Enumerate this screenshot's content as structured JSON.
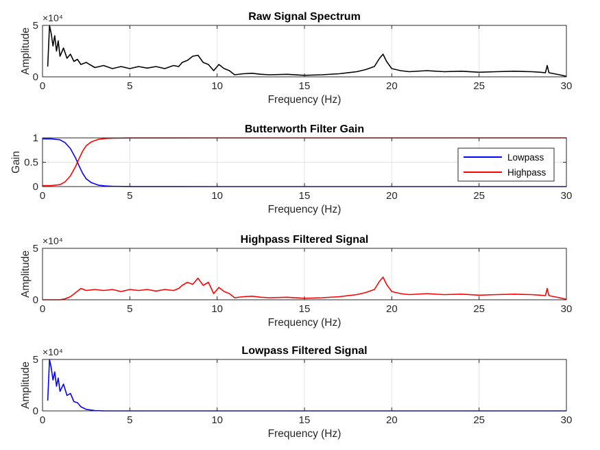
{
  "chart_data": [
    {
      "type": "line",
      "title": "Raw Signal Spectrum",
      "xlabel": "Frequency (Hz)",
      "ylabel": "Amplitude",
      "xlim": [
        0,
        30
      ],
      "ylim": [
        0,
        50000
      ],
      "xticks": [
        "0",
        "5",
        "10",
        "15",
        "20",
        "25",
        "30"
      ],
      "yticks": [
        "0",
        "5"
      ],
      "y_exponent_label": "×10⁴",
      "grid": true,
      "series": [
        {
          "color": "#000000",
          "x": [
            0.3,
            0.4,
            0.5,
            0.6,
            0.7,
            0.8,
            0.9,
            1.0,
            1.2,
            1.4,
            1.6,
            1.8,
            2.0,
            2.2,
            2.5,
            3.0,
            3.5,
            4.0,
            4.5,
            5.0,
            5.5,
            6.0,
            6.5,
            7.0,
            7.5,
            7.8,
            8.0,
            8.3,
            8.6,
            8.9,
            9.2,
            9.5,
            9.8,
            10.1,
            10.4,
            10.7,
            11.0,
            11.5,
            12.0,
            12.5,
            13.0,
            14.0,
            15.0,
            16.0,
            17.0,
            18.0,
            18.5,
            19.0,
            19.3,
            19.5,
            19.7,
            20.0,
            20.5,
            21.0,
            22.0,
            23.0,
            24.0,
            25.0,
            26.0,
            27.0,
            28.0,
            28.5,
            28.8,
            28.9,
            29.0,
            29.3,
            29.6,
            30.0
          ],
          "y": [
            10000,
            50000,
            42000,
            30000,
            40000,
            25000,
            35000,
            20000,
            28000,
            18000,
            22000,
            15000,
            17000,
            12000,
            14000,
            9000,
            11000,
            8000,
            10000,
            8000,
            10000,
            8500,
            10000,
            8000,
            11000,
            10000,
            14000,
            16000,
            20000,
            21000,
            14000,
            12000,
            6000,
            12000,
            8000,
            6000,
            2000,
            3000,
            3500,
            2500,
            2000,
            2500,
            1500,
            2000,
            3000,
            5000,
            7000,
            10000,
            18000,
            22000,
            15000,
            8000,
            6000,
            5000,
            6000,
            5000,
            5500,
            4500,
            5000,
            5500,
            5000,
            4500,
            4000,
            11000,
            4000,
            3000,
            2000,
            500
          ]
        }
      ]
    },
    {
      "type": "line",
      "title": "Butterworth Filter Gain",
      "xlabel": "Frequency (Hz)",
      "ylabel": "Gain",
      "xlim": [
        0,
        30
      ],
      "ylim": [
        0,
        1
      ],
      "xticks": [
        "0",
        "5",
        "10",
        "15",
        "20",
        "25",
        "30"
      ],
      "yticks": [
        "0",
        "0.5",
        "1"
      ],
      "grid": true,
      "legend": "right",
      "series": [
        {
          "name": "Lowpass",
          "color": "#0000ff",
          "x": [
            0,
            0.5,
            1.0,
            1.3,
            1.6,
            1.9,
            2.0,
            2.1,
            2.3,
            2.5,
            2.8,
            3.2,
            3.6,
            4.0,
            5.0,
            10.0,
            20.0,
            30.0
          ],
          "y": [
            0.98,
            0.98,
            0.96,
            0.9,
            0.78,
            0.58,
            0.5,
            0.42,
            0.27,
            0.16,
            0.08,
            0.03,
            0.012,
            0.005,
            0.001,
            0,
            0,
            0
          ]
        },
        {
          "name": "Highpass",
          "color": "#ff0000",
          "x": [
            0,
            0.5,
            1.0,
            1.3,
            1.6,
            1.9,
            2.0,
            2.1,
            2.3,
            2.5,
            2.8,
            3.2,
            3.6,
            4.0,
            5.0,
            10.0,
            20.0,
            30.0
          ],
          "y": [
            0.02,
            0.02,
            0.04,
            0.1,
            0.22,
            0.42,
            0.5,
            0.58,
            0.73,
            0.84,
            0.92,
            0.97,
            0.988,
            0.995,
            0.999,
            1,
            1,
            1
          ]
        }
      ]
    },
    {
      "type": "line",
      "title": "Highpass Filtered Signal",
      "xlabel": "Frequency (Hz)",
      "ylabel": "Amplitude",
      "xlim": [
        0,
        30
      ],
      "ylim": [
        0,
        50000
      ],
      "xticks": [
        "0",
        "5",
        "10",
        "15",
        "20",
        "25",
        "30"
      ],
      "yticks": [
        "0",
        "5"
      ],
      "y_exponent_label": "×10⁴",
      "grid": true,
      "series": [
        {
          "color": "#ff0000",
          "x": [
            0,
            1.0,
            1.3,
            1.6,
            1.9,
            2.2,
            2.5,
            3.0,
            3.5,
            4.0,
            4.5,
            5.0,
            5.5,
            6.0,
            6.5,
            7.0,
            7.5,
            7.8,
            8.0,
            8.3,
            8.6,
            8.9,
            9.2,
            9.5,
            9.8,
            10.1,
            10.4,
            10.7,
            11.0,
            11.5,
            12.0,
            12.5,
            13.0,
            14.0,
            15.0,
            16.0,
            17.0,
            18.0,
            18.5,
            19.0,
            19.3,
            19.5,
            19.7,
            20.0,
            20.5,
            21.0,
            22.0,
            23.0,
            24.0,
            25.0,
            26.0,
            27.0,
            28.0,
            28.5,
            28.8,
            28.9,
            29.0,
            29.3,
            29.6,
            30.0
          ],
          "y": [
            0,
            0,
            1000,
            3000,
            7000,
            11000,
            9000,
            10000,
            9000,
            10000,
            8000,
            10000,
            9000,
            10000,
            8500,
            10000,
            9000,
            11000,
            14000,
            17000,
            15000,
            21000,
            14000,
            17000,
            6000,
            12000,
            8000,
            6000,
            2000,
            3000,
            3500,
            2500,
            2000,
            2500,
            1500,
            2000,
            3000,
            5000,
            7000,
            10000,
            18000,
            22000,
            15000,
            8000,
            6000,
            5000,
            6000,
            5000,
            5500,
            4500,
            5000,
            5500,
            5000,
            4500,
            4000,
            11000,
            4000,
            3000,
            2000,
            500
          ]
        }
      ]
    },
    {
      "type": "line",
      "title": "Lowpass Filtered Signal",
      "xlabel": "Frequency (Hz)",
      "ylabel": "Amplitude",
      "xlim": [
        0,
        30
      ],
      "ylim": [
        0,
        50000
      ],
      "xticks": [
        "0",
        "5",
        "10",
        "15",
        "20",
        "25",
        "30"
      ],
      "yticks": [
        "0",
        "5"
      ],
      "y_exponent_label": "×10⁴",
      "grid": true,
      "series": [
        {
          "color": "#0000ff",
          "x": [
            0.3,
            0.4,
            0.5,
            0.6,
            0.7,
            0.8,
            0.9,
            1.0,
            1.2,
            1.4,
            1.6,
            1.8,
            2.0,
            2.2,
            2.5,
            3.0,
            3.5,
            4.0,
            5.0,
            10.0,
            20.0,
            30.0
          ],
          "y": [
            10000,
            50000,
            42000,
            30000,
            38000,
            24000,
            32000,
            19000,
            26000,
            15000,
            17000,
            9000,
            8000,
            4000,
            1500,
            300,
            100,
            0,
            0,
            0,
            0,
            0
          ]
        }
      ]
    }
  ]
}
